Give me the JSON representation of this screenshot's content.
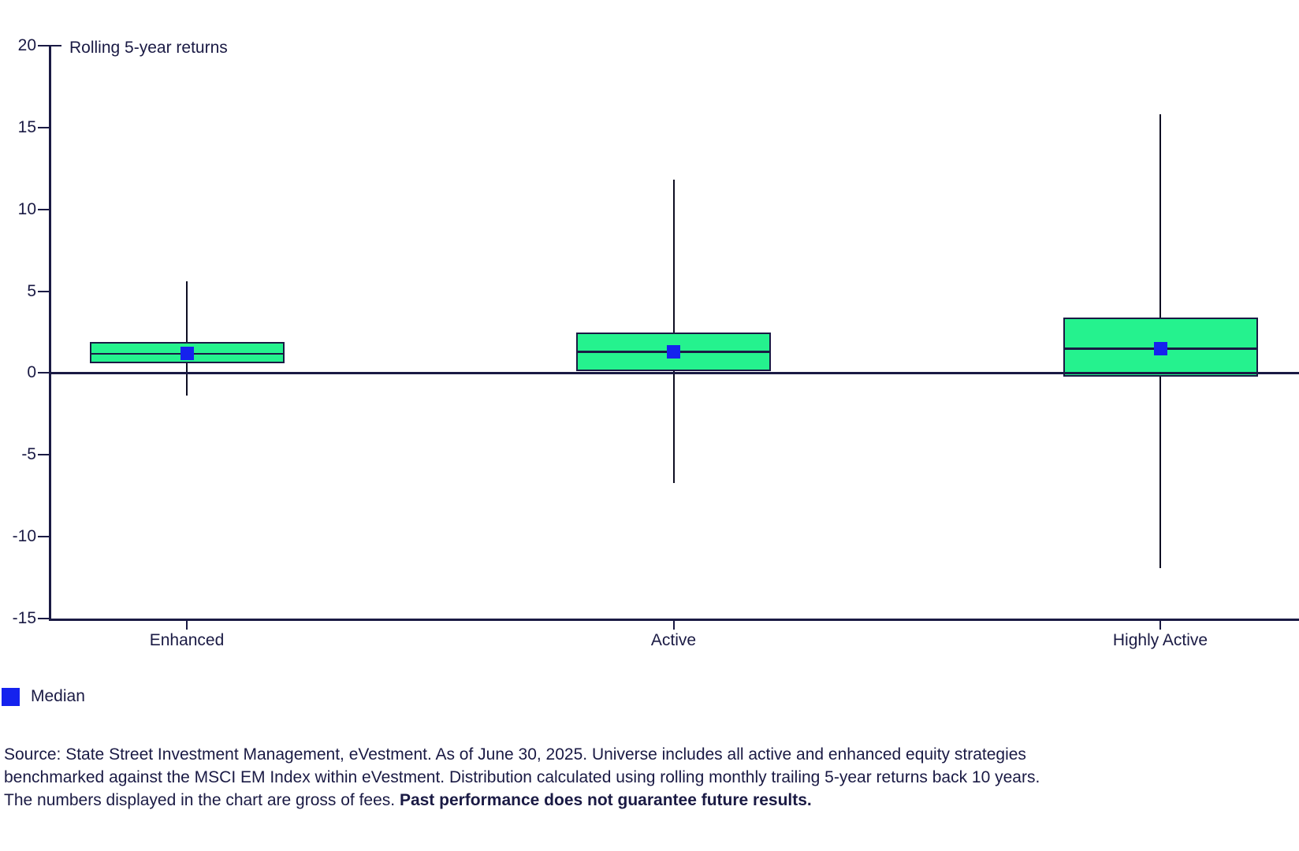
{
  "chart_data": {
    "type": "boxplot",
    "title": "Rolling 5-year returns",
    "categories": [
      "Enhanced",
      "Active",
      "Highly Active"
    ],
    "series": [
      {
        "name": "Enhanced",
        "whisker_low": -1.4,
        "q1": 0.6,
        "median": 1.2,
        "q3": 1.9,
        "whisker_high": 5.6
      },
      {
        "name": "Active",
        "whisker_low": -6.7,
        "q1": 0.1,
        "median": 1.3,
        "q3": 2.5,
        "whisker_high": 11.8
      },
      {
        "name": "Highly Active",
        "whisker_low": -11.9,
        "q1": -0.2,
        "median": 1.5,
        "q3": 3.4,
        "whisker_high": 15.8
      }
    ],
    "ylim": [
      -15,
      20
    ],
    "y_ticks": [
      20,
      15,
      10,
      5,
      0,
      -5,
      -10,
      -15
    ],
    "marker": "median-square",
    "grid": "off",
    "legend_position": "bottom-left"
  },
  "colors": {
    "ink": "#1A1A44",
    "green_fill": "#25F28E",
    "median_blue": "#1522EE",
    "whisker": "#0E0E22",
    "background": "#FFFFFF"
  },
  "legend": {
    "label": "Median"
  },
  "footer": {
    "line1": "Source: State Street Investment Management, eVestment. As of June 30, 2025. Universe includes all active and enhanced equity strategies",
    "line2": "benchmarked against the MSCI EM Index within eVestment. Distribution calculated using rolling monthly trailing 5-year returns back 10 years.",
    "line3": "The numbers displayed in the chart are gross of fees. ",
    "line3_bold": "Past performance does not guarantee future results."
  }
}
